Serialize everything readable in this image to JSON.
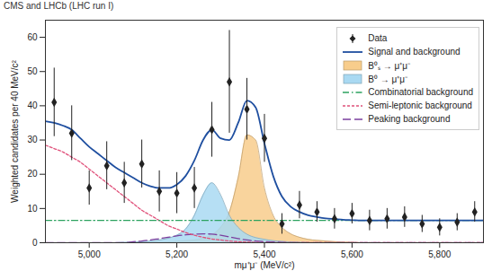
{
  "chart_data": {
    "type": "scatter",
    "title": "CMS and LHCb (LHC run I)",
    "x_label": "mμ⁺μ⁻ (MeV/c²)",
    "y_label": "Weighted candidates per 40 MeV/c²",
    "xlim": [
      4900,
      5900
    ],
    "ylim": [
      0,
      65
    ],
    "xticks": [
      {
        "value": 5000,
        "label": "5,000"
      },
      {
        "value": 5200,
        "label": "5,200"
      },
      {
        "value": 5400,
        "label": "5,400"
      },
      {
        "value": 5600,
        "label": "5,600"
      },
      {
        "value": 5800,
        "label": "5,800"
      }
    ],
    "yticks": [
      0,
      10,
      20,
      30,
      40,
      50,
      60
    ],
    "grid": false,
    "legend": "top-right",
    "x": [
      4900,
      4920,
      4940,
      4960,
      4980,
      5000,
      5020,
      5040,
      5060,
      5080,
      5100,
      5120,
      5140,
      5160,
      5180,
      5200,
      5220,
      5240,
      5260,
      5280,
      5300,
      5320,
      5340,
      5360,
      5380,
      5400,
      5420,
      5440,
      5460,
      5480,
      5500,
      5520,
      5540,
      5560,
      5580,
      5600,
      5620,
      5640,
      5660,
      5680,
      5700,
      5720,
      5740,
      5760,
      5780,
      5800,
      5820,
      5840,
      5860,
      5880,
      5900
    ],
    "series": [
      {
        "name": "Data",
        "type": "scatter",
        "marker": "diamond",
        "color": "#222222",
        "x": [
          4920,
          4960,
          5000,
          5040,
          5080,
          5120,
          5160,
          5200,
          5240,
          5280,
          5320,
          5360,
          5400,
          5440,
          5480,
          5520,
          5560,
          5600,
          5640,
          5680,
          5720,
          5760,
          5800,
          5840,
          5880
        ],
        "values": [
          41,
          32,
          16,
          22.5,
          17.5,
          23,
          15,
          14.5,
          16,
          33,
          47,
          39,
          30.5,
          5.5,
          11,
          9,
          7,
          8.5,
          6.5,
          7,
          7.5,
          5.5,
          4.5,
          6,
          9
        ],
        "errors": [
          10,
          8,
          5,
          7,
          6,
          7,
          6,
          6,
          6,
          8,
          15,
          9,
          7,
          3,
          4,
          3,
          3,
          3,
          3,
          3,
          3,
          2.5,
          2.5,
          2.5,
          3
        ]
      },
      {
        "name": "Signal and background",
        "type": "line",
        "line_style": "solid",
        "color": "#1f4fa0",
        "values": [
          35.5,
          35,
          34.2,
          33,
          30.5,
          28,
          26,
          24,
          22,
          20.5,
          19,
          17.5,
          16.5,
          16,
          16,
          17,
          19.5,
          24,
          30,
          33,
          30.5,
          30,
          35,
          41.5,
          39.5,
          29,
          19.5,
          13.5,
          10.5,
          9,
          8,
          7.5,
          7.1,
          6.9,
          6.7,
          6.6,
          6.5,
          6.5,
          6.5,
          6.5,
          6.5,
          6.5,
          6.5,
          6.5,
          6.5,
          6.5,
          6.5,
          6.5,
          6.5,
          6.5,
          6.5
        ]
      },
      {
        "name": "B⁰ₛ → μ⁺μ⁻",
        "type": "area",
        "color": "#f8cd8c",
        "values": [
          0,
          0,
          0,
          0,
          0,
          0,
          0,
          0,
          0,
          0,
          0,
          0,
          0,
          0.1,
          0.2,
          0.4,
          0.6,
          0.8,
          1.3,
          2.3,
          4.5,
          9,
          19,
          31.5,
          30,
          16,
          8,
          4.5,
          2.6,
          1.6,
          1,
          0.7,
          0.5,
          0.3,
          0.2,
          0.1,
          0,
          0,
          0,
          0,
          0,
          0,
          0,
          0,
          0,
          0,
          0,
          0,
          0,
          0,
          0
        ]
      },
      {
        "name": "B⁰ → μ⁺μ⁻",
        "type": "area",
        "color": "#a9d9f2",
        "values": [
          0,
          0,
          0,
          0,
          0,
          0,
          0,
          0,
          0,
          0.1,
          0.2,
          0.3,
          0.5,
          0.8,
          1.3,
          2.2,
          4,
          8,
          14,
          17.5,
          14,
          8,
          4.5,
          2.5,
          1.5,
          1,
          0.6,
          0.4,
          0.2,
          0.1,
          0,
          0,
          0,
          0,
          0,
          0,
          0,
          0,
          0,
          0,
          0,
          0,
          0,
          0,
          0,
          0,
          0,
          0,
          0,
          0,
          0
        ]
      },
      {
        "name": "Combinatorial background",
        "type": "line",
        "line_style": "dashdot",
        "color": "#2ca25f",
        "values": [
          6.5,
          6.5,
          6.5,
          6.5,
          6.5,
          6.5,
          6.5,
          6.5,
          6.5,
          6.5,
          6.5,
          6.5,
          6.5,
          6.5,
          6.5,
          6.5,
          6.5,
          6.5,
          6.5,
          6.5,
          6.5,
          6.5,
          6.5,
          6.5,
          6.5,
          6.5,
          6.5,
          6.5,
          6.5,
          6.5,
          6.5,
          6.5,
          6.5,
          6.5,
          6.5,
          6.5,
          6.5,
          6.5,
          6.5,
          6.5,
          6.5,
          6.5,
          6.5,
          6.5,
          6.5,
          6.5,
          6.5,
          6.5,
          6.5,
          6.5,
          6.5
        ]
      },
      {
        "name": "Semi-leptonic background",
        "type": "line",
        "line_style": "dotted",
        "color": "#e0507a",
        "values": [
          28.5,
          27.5,
          26.5,
          25,
          23.5,
          21.5,
          19.5,
          17.5,
          15.5,
          13.5,
          11.5,
          9.5,
          8,
          6.5,
          5,
          4,
          3,
          2.2,
          1.6,
          1.1,
          0.8,
          0.5,
          0.3,
          0.2,
          0.1,
          0,
          0,
          0,
          0,
          0,
          0,
          0,
          0,
          0,
          0,
          0,
          0,
          0,
          0,
          0,
          0,
          0,
          0,
          0,
          0,
          0,
          0,
          0,
          0,
          0,
          0
        ]
      },
      {
        "name": "Peaking background",
        "type": "line",
        "line_style": "dashed",
        "color": "#7b3f9e",
        "values": [
          0,
          0,
          0,
          0,
          0,
          0,
          0,
          0,
          0,
          0,
          0.3,
          0.5,
          0.8,
          1.2,
          1.6,
          2,
          2.3,
          2.5,
          2.6,
          2.5,
          2.2,
          1.7,
          1.2,
          0.8,
          0.5,
          0.3,
          0.2,
          0.1,
          0,
          0,
          0,
          0,
          0,
          0,
          0,
          0,
          0,
          0,
          0,
          0,
          0,
          0,
          0,
          0,
          0,
          0,
          0,
          0,
          0,
          0,
          0
        ]
      }
    ]
  }
}
